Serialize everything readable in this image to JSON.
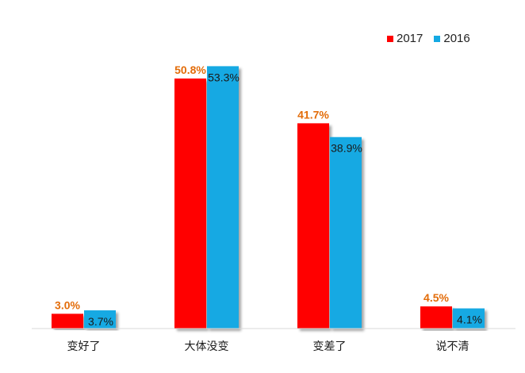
{
  "chart_data": {
    "type": "bar",
    "categories": [
      "变好了",
      "大体没变",
      "变差了",
      "说不清"
    ],
    "series": [
      {
        "name": "2017",
        "values": [
          3.0,
          50.8,
          41.7,
          4.5
        ],
        "labels": [
          "3.0%",
          "50.8%",
          "41.7%",
          "4.5%"
        ],
        "color": "#ff0000",
        "label_color": "#e36c09"
      },
      {
        "name": "2016",
        "values": [
          3.7,
          53.3,
          38.9,
          4.1
        ],
        "labels": [
          "3.7%",
          "53.3%",
          "38.9%",
          "4.1%"
        ],
        "color": "#14a9e3",
        "label_color": "#1a1a1a"
      }
    ],
    "ylim": [
      0,
      55.3
    ],
    "grid": false,
    "legend_position": "top-right"
  },
  "legend": {
    "items": [
      {
        "label": "2017",
        "color": "#ff0000"
      },
      {
        "label": "2016",
        "color": "#14a9e3"
      }
    ]
  }
}
